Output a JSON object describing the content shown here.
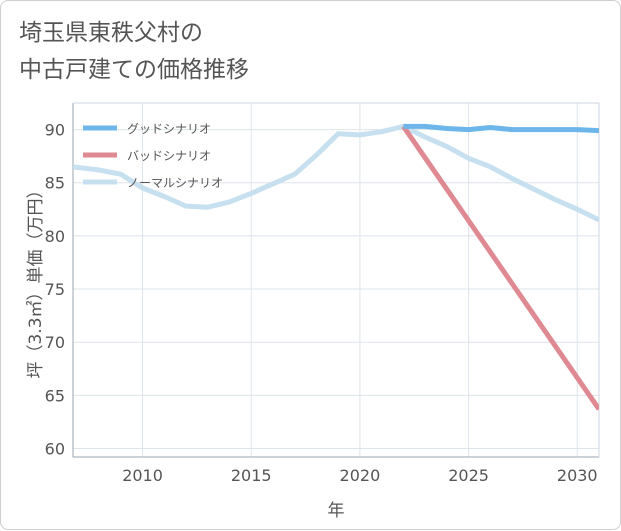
{
  "chart_data": {
    "type": "line",
    "title_lines": [
      "埼玉県東秩父村の",
      "中古戸建ての価格推移"
    ],
    "xlabel": "年",
    "ylabel": "坪（3.3㎡）単価（万円）",
    "xlim": [
      2006.8,
      2031
    ],
    "ylim": [
      59.2,
      92.5
    ],
    "xticks": [
      2010,
      2015,
      2020,
      2025,
      2030
    ],
    "yticks": [
      60,
      65,
      70,
      75,
      80,
      85,
      90
    ],
    "grid": true,
    "legend_position": "top-left",
    "series": [
      {
        "name": "グッドシナリオ",
        "color": "#6cb6ea",
        "x": [
          2022,
          2023,
          2024,
          2025,
          2026,
          2027,
          2028,
          2029,
          2030,
          2031
        ],
        "y": [
          90.3,
          90.3,
          90.1,
          90.0,
          90.2,
          90.0,
          90.0,
          90.0,
          90.0,
          89.9
        ]
      },
      {
        "name": "バッドシナリオ",
        "color": "#df8a93",
        "x": [
          2022,
          2031
        ],
        "y": [
          90.3,
          63.7
        ]
      },
      {
        "name": "ノーマルシナリオ",
        "color": "#c6e0ef",
        "x": [
          2006.8,
          2008,
          2009,
          2010,
          2011,
          2012,
          2013,
          2014,
          2015,
          2016,
          2017,
          2018,
          2019,
          2020,
          2021,
          2022,
          2023,
          2024,
          2025,
          2026,
          2027,
          2028,
          2029,
          2030,
          2031
        ],
        "y": [
          86.5,
          86.2,
          85.8,
          84.5,
          83.7,
          82.8,
          82.7,
          83.2,
          84.0,
          84.9,
          85.8,
          87.6,
          89.6,
          89.5,
          89.8,
          90.3,
          89.3,
          88.4,
          87.3,
          86.5,
          85.4,
          84.4,
          83.4,
          82.5,
          81.5
        ]
      }
    ]
  }
}
